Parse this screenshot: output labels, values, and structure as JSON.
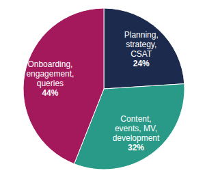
{
  "chart_data": {
    "type": "pie",
    "categories": [
      "Planning, strategy, CSAT",
      "Content, events, MV, development",
      "Onboarding, engagement, queries"
    ],
    "values": [
      24,
      32,
      44
    ],
    "value_labels": [
      "24%",
      "32%",
      "44%"
    ],
    "colors": [
      "#1c2b4d",
      "#2a9a88",
      "#a3195b"
    ],
    "data_labels": true
  }
}
